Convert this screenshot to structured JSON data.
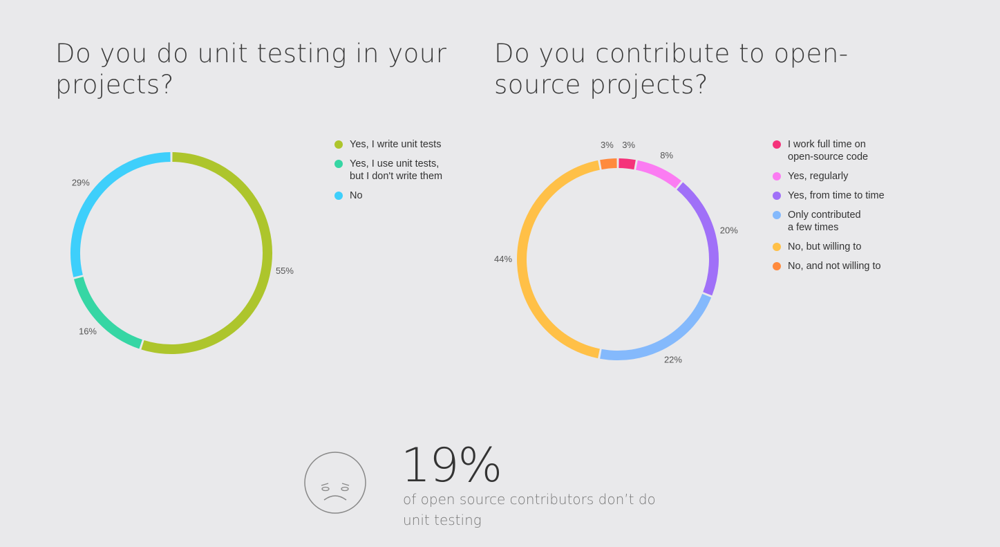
{
  "chart_data": [
    {
      "type": "pie",
      "title": "Do you do unit testing in your projects?",
      "categories": [
        "Yes, I write unit tests",
        "Yes, I use unit tests,\nbut I don't write them",
        "No"
      ],
      "values": [
        55,
        16,
        29
      ],
      "value_labels": [
        "55%",
        "16%",
        "29%"
      ],
      "colors": [
        "#adc52c",
        "#36d6a4",
        "#3ecffb"
      ],
      "style": "ring",
      "legend": "right"
    },
    {
      "type": "pie",
      "title": "Do you contribute to open-source projects?",
      "categories": [
        "I work full time on\nopen-source code",
        "Yes, regularly",
        "Yes, from time to time",
        "Only contributed\na few times",
        "No, but willing to",
        "No, and not willing to"
      ],
      "values": [
        3,
        8,
        20,
        22,
        44,
        3
      ],
      "value_labels": [
        "3%",
        "8%",
        "20%",
        "22%",
        "44%",
        "3%"
      ],
      "colors": [
        "#f5327a",
        "#fb7cf2",
        "#a070f8",
        "#84b9fc",
        "#ffc047",
        "#ff8a3d"
      ],
      "style": "ring",
      "legend": "right"
    }
  ],
  "stat": {
    "value": "19%",
    "description": "of open source contributors don’t do unit testing",
    "icon": "sad-face-icon"
  }
}
